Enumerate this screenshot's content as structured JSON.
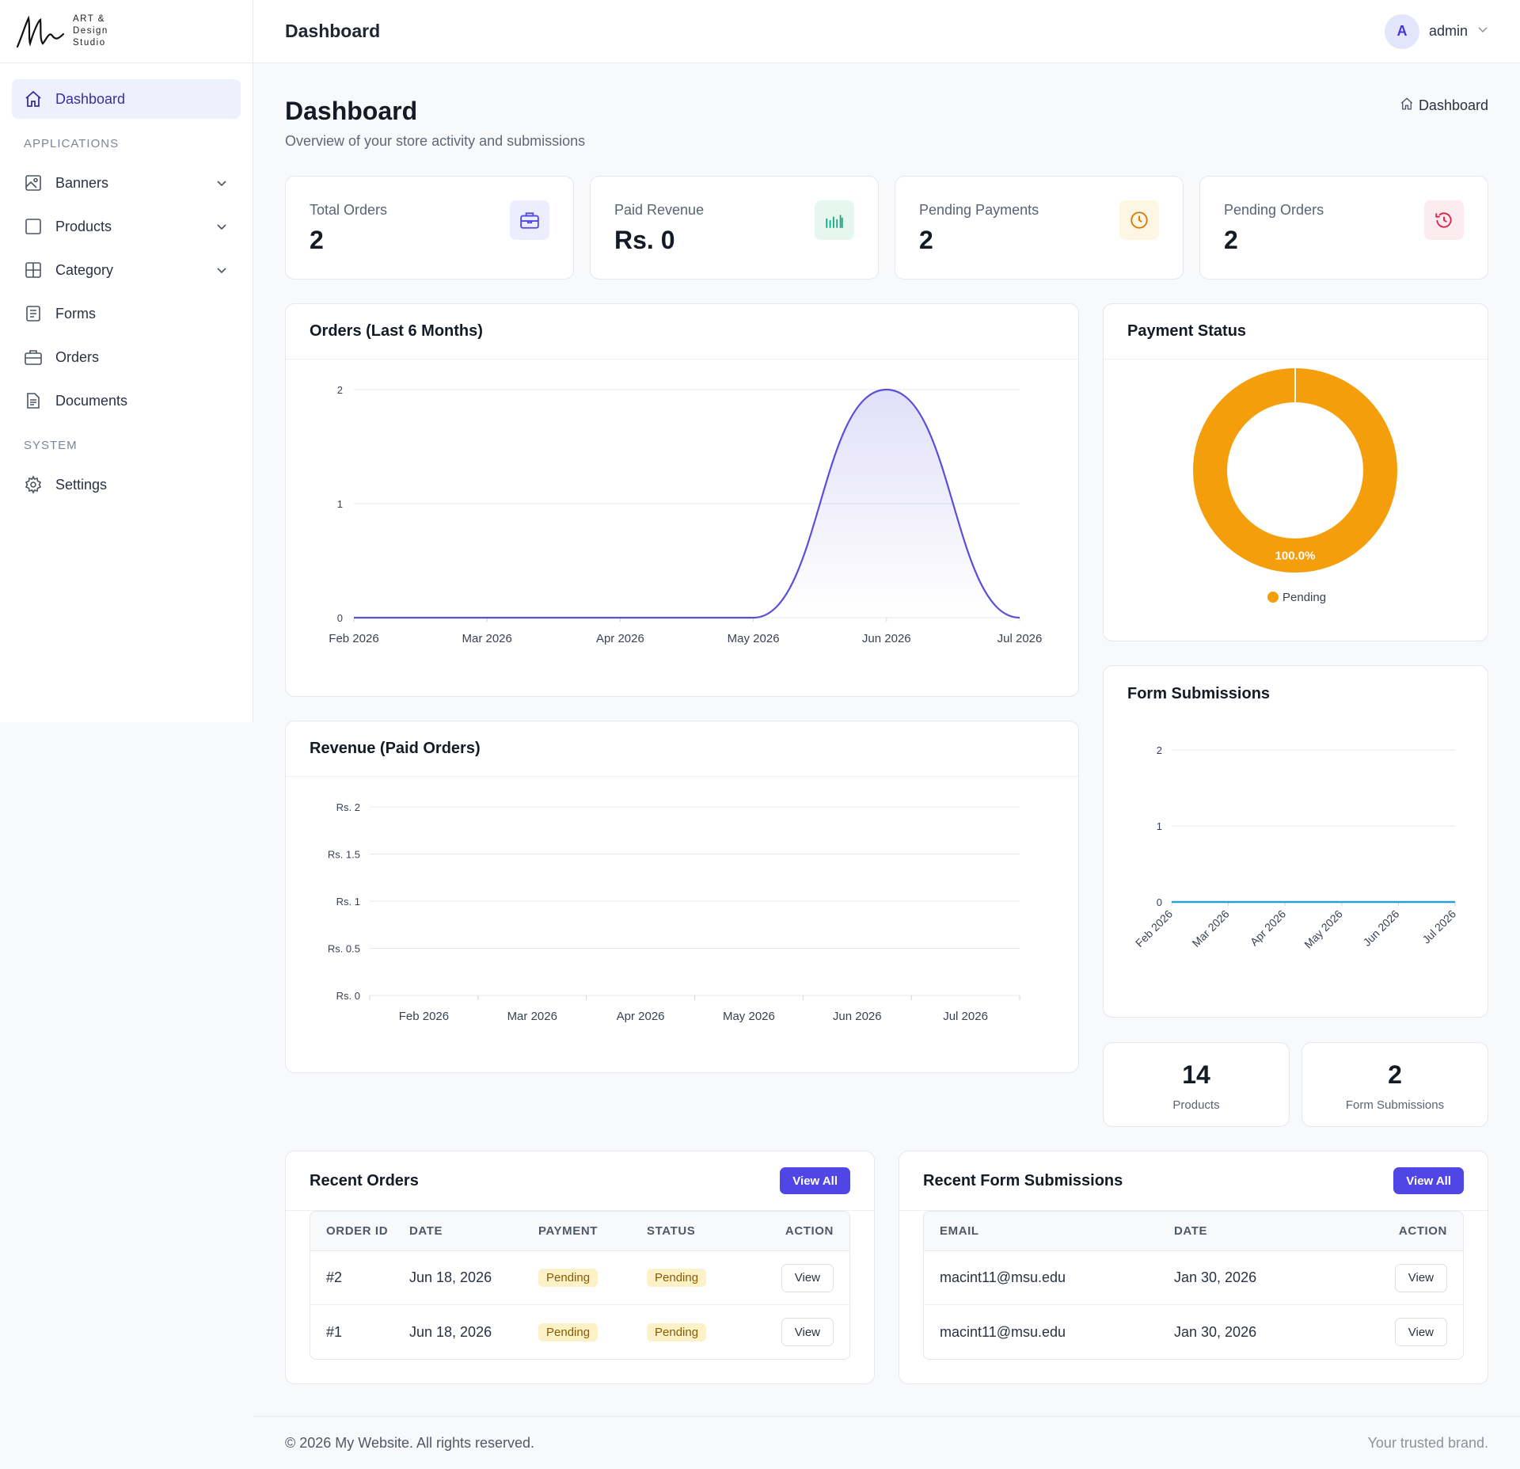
{
  "brand": {
    "logo_text_1": "ART &",
    "logo_text_2": "Design",
    "logo_text_3": "Studio"
  },
  "sidebar": {
    "dashboard": "Dashboard",
    "section_apps": "APPLICATIONS",
    "items": [
      {
        "label": "Banners",
        "icon": "image-icon"
      },
      {
        "label": "Products",
        "icon": "square-icon"
      },
      {
        "label": "Category",
        "icon": "grid-icon"
      },
      {
        "label": "Forms",
        "icon": "form-icon"
      },
      {
        "label": "Orders",
        "icon": "briefcase-icon"
      },
      {
        "label": "Documents",
        "icon": "document-icon"
      }
    ],
    "section_system": "SYSTEM",
    "settings": "Settings"
  },
  "topbar": {
    "title": "Dashboard",
    "avatar_letter": "A",
    "user": "admin"
  },
  "page": {
    "title": "Dashboard",
    "subtitle": "Overview of your store activity and submissions",
    "breadcrumb": "Dashboard"
  },
  "stats": [
    {
      "label": "Total Orders",
      "value": "2",
      "icon": "briefcase-icon",
      "color": "#4f46e5",
      "bg": "#eceefd"
    },
    {
      "label": "Paid Revenue",
      "value": "Rs. 0",
      "icon": "bar-chart-icon",
      "color": "#10a37f",
      "bg": "#e6f7f0"
    },
    {
      "label": "Pending Payments",
      "value": "2",
      "icon": "clock-icon",
      "color": "#d97706",
      "bg": "#fdf6e3"
    },
    {
      "label": "Pending Orders",
      "value": "2",
      "icon": "history-icon",
      "color": "#e11d48",
      "bg": "#fdecef"
    }
  ],
  "orders_chart": {
    "title": "Orders (Last 6 Months)"
  },
  "revenue_chart": {
    "title": "Revenue (Paid Orders)"
  },
  "payment_chart": {
    "title": "Payment Status"
  },
  "forms_chart": {
    "title": "Form Submissions"
  },
  "chart_data": [
    {
      "type": "area",
      "title": "Orders (Last 6 Months)",
      "x": [
        "Feb 2026",
        "Mar 2026",
        "Apr 2026",
        "May 2026",
        "Jun 2026",
        "Jul 2026"
      ],
      "y": [
        0,
        0,
        0,
        0,
        2,
        0
      ],
      "yticks": [
        "0",
        "1",
        "2"
      ],
      "ylim": [
        0,
        2
      ],
      "color": "#5b4fd8",
      "grid": true
    },
    {
      "type": "bar",
      "title": "Revenue (Paid Orders)",
      "categories": [
        "Feb 2026",
        "Mar 2026",
        "Apr 2026",
        "May 2026",
        "Jun 2026",
        "Jul 2026"
      ],
      "values": [
        0,
        0,
        0,
        0,
        0,
        0
      ],
      "yticks": [
        "Rs. 0",
        "Rs. 0.5",
        "Rs. 1",
        "Rs. 1.5",
        "Rs. 2"
      ],
      "ylim": [
        0,
        2
      ],
      "grid": true
    },
    {
      "type": "pie",
      "title": "Payment Status",
      "labels": [
        "Pending"
      ],
      "values": [
        100.0
      ],
      "percent_labels": [
        "100.0%"
      ],
      "colors": [
        "#f59e0b"
      ],
      "legend": "bottom"
    },
    {
      "type": "line",
      "title": "Form Submissions",
      "x": [
        "Feb 2026",
        "Mar 2026",
        "Apr 2026",
        "May 2026",
        "Jun 2026",
        "Jul 2026"
      ],
      "y": [
        0,
        0,
        0,
        0,
        0,
        0
      ],
      "yticks": [
        "0",
        "1",
        "2"
      ],
      "ylim": [
        0,
        2
      ],
      "color": "#2a9fd6",
      "grid": true
    }
  ],
  "minis": [
    {
      "value": "14",
      "label": "Products"
    },
    {
      "value": "2",
      "label": "Form Submissions"
    }
  ],
  "recent_orders": {
    "title": "Recent Orders",
    "view_all": "View All",
    "headers": [
      "ORDER ID",
      "DATE",
      "PAYMENT",
      "STATUS",
      "ACTION"
    ],
    "rows": [
      {
        "id": "#2",
        "date": "Jun 18, 2026",
        "payment": "Pending",
        "status": "Pending",
        "action": "View"
      },
      {
        "id": "#1",
        "date": "Jun 18, 2026",
        "payment": "Pending",
        "status": "Pending",
        "action": "View"
      }
    ]
  },
  "recent_forms": {
    "title": "Recent Form Submissions",
    "view_all": "View All",
    "headers": [
      "EMAIL",
      "DATE",
      "ACTION"
    ],
    "rows": [
      {
        "email": "macint11@msu.edu",
        "date": "Jan 30, 2026",
        "action": "View"
      },
      {
        "email": "macint11@msu.edu",
        "date": "Jan 30, 2026",
        "action": "View"
      }
    ]
  },
  "footer": {
    "left": "© 2026 My Website. All rights reserved.",
    "right": "Your trusted brand."
  }
}
